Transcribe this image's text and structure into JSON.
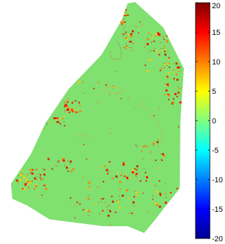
{
  "colorbar": {
    "ticks": [
      {
        "value": 20,
        "label": "20"
      },
      {
        "value": 15,
        "label": "15"
      },
      {
        "value": 10,
        "label": "10"
      },
      {
        "value": 5,
        "label": "5"
      },
      {
        "value": 0,
        "label": "0"
      },
      {
        "value": -5,
        "label": "-5"
      },
      {
        "value": -10,
        "label": "-10"
      },
      {
        "value": -15,
        "label": "-15"
      },
      {
        "value": -20,
        "label": "-20"
      }
    ],
    "range": [
      -20,
      20
    ],
    "colormap": [
      "#00008f",
      "#0000ff",
      "#0080ff",
      "#00ffff",
      "#80ff80",
      "#ffff00",
      "#ff8000",
      "#ff0000",
      "#800000"
    ]
  },
  "map": {
    "background_color": "#80e070",
    "anomaly_colors": [
      "#ff0000",
      "#ff8000",
      "#ffcc00",
      "#c03000"
    ]
  }
}
